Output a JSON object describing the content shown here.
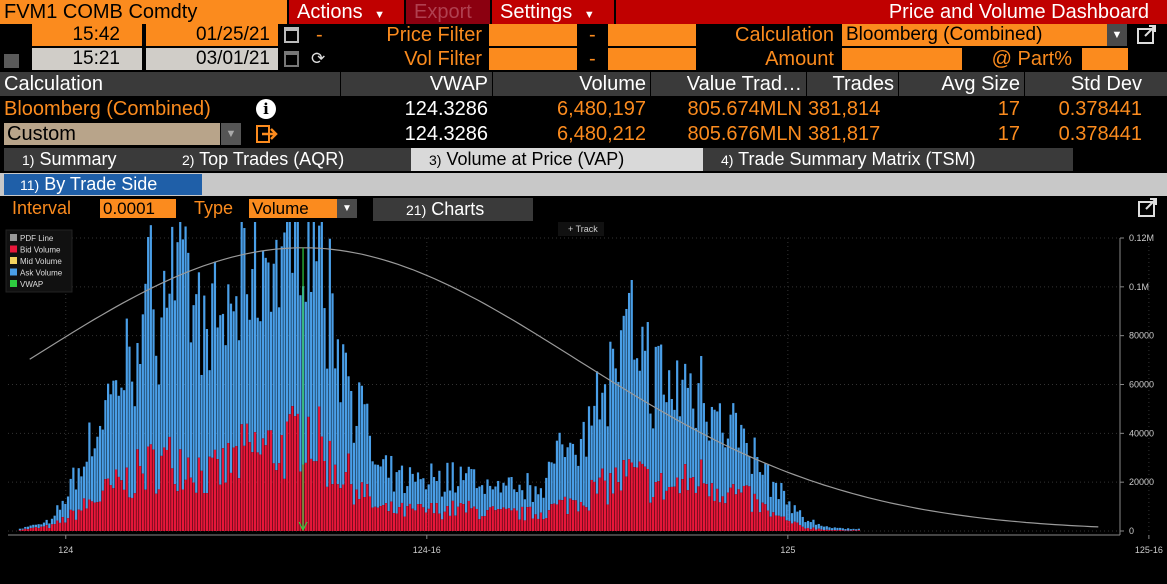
{
  "header": {
    "ticker": "FVM1 COMB Comdty",
    "actions_label": "Actions",
    "export_label": "Export",
    "settings_label": "Settings",
    "dashboard_title": "Price and Volume Dashboard"
  },
  "filters": {
    "start_time": "15:42",
    "start_date": "01/25/21",
    "end_time": "15:21",
    "end_date": "03/01/21",
    "range_dash": "-",
    "price_filter_label": "Price Filter",
    "price_filter_from": "",
    "price_filter_to": "",
    "vol_filter_label": "Vol Filter",
    "vol_filter_from": "",
    "vol_filter_to": "",
    "calculation_label": "Calculation",
    "calculation_value": "Bloomberg (Combined)",
    "amount_label": "Amount",
    "amount_value": "",
    "part_label": "@ Part%",
    "part_value": ""
  },
  "table": {
    "headers": [
      "Calculation",
      "VWAP",
      "Volume",
      "Value Trad…",
      "Trades",
      "Avg Size",
      "Std Dev"
    ],
    "rows": [
      {
        "calc": "Bloomberg (Combined)",
        "vwap": "124.3286",
        "volume": "6,480,197",
        "value": "805.674MLN",
        "trades": "381,814",
        "avg": "17",
        "std": "0.378441"
      },
      {
        "calc": "Custom",
        "vwap": "124.3286",
        "volume": "6,480,212",
        "value": "805.676MLN",
        "trades": "381,817",
        "avg": "17",
        "std": "0.378441"
      }
    ]
  },
  "tabs": [
    {
      "num": "1)",
      "label": "Summary"
    },
    {
      "num": "2)",
      "label": "Top Trades (AQR)"
    },
    {
      "num": "3)",
      "label": "Volume at Price (VAP)"
    },
    {
      "num": "4)",
      "label": "Trade Summary Matrix (TSM)"
    }
  ],
  "subtab": {
    "num": "11)",
    "label": "By Trade Side"
  },
  "controls": {
    "interval_label": "Interval",
    "interval_value": "0.0001",
    "type_label": "Type",
    "type_value": "Volume",
    "charts_num": "21)",
    "charts_label": "Charts",
    "track_label": "Track"
  },
  "colors": {
    "orange": "#fb8b1e",
    "bid": "#e8173a",
    "ask": "#4a9fe8",
    "mid": "#f4d35e",
    "vwap": "#2ecc40",
    "pdf": "#9a9a9a"
  },
  "chart_data": {
    "type": "bar",
    "stacked": true,
    "legend": [
      "PDF Line",
      "Bid Volume",
      "Mid Volume",
      "Ask Volume",
      "VWAP"
    ],
    "legend_position": "top-left",
    "x_ticks": [
      "124",
      "124-16",
      "125",
      "125-16"
    ],
    "x_range": [
      123.92,
      125.46
    ],
    "y_ticks": [
      "0",
      "20000",
      "40000",
      "60000",
      "80000",
      "0.1M",
      "0.12M"
    ],
    "ylim": [
      0,
      120000
    ],
    "vwap": 124.3286,
    "series": [
      {
        "name": "Bid Volume",
        "anchors": [
          [
            123.92,
            0
          ],
          [
            123.98,
            2000
          ],
          [
            124.01,
            7000
          ],
          [
            124.05,
            15000
          ],
          [
            124.08,
            20000
          ],
          [
            124.12,
            27000
          ],
          [
            124.16,
            30000
          ],
          [
            124.2,
            22000
          ],
          [
            124.25,
            32000
          ],
          [
            124.31,
            35000
          ],
          [
            124.33,
            45000
          ],
          [
            124.36,
            30000
          ],
          [
            124.39,
            22000
          ],
          [
            124.43,
            9000
          ],
          [
            124.47,
            8000
          ],
          [
            124.55,
            9000
          ],
          [
            124.6,
            7000
          ],
          [
            124.65,
            7000
          ],
          [
            124.7,
            12000
          ],
          [
            124.78,
            23000
          ],
          [
            124.83,
            17000
          ],
          [
            124.88,
            22000
          ],
          [
            124.92,
            16000
          ],
          [
            124.95,
            12000
          ],
          [
            124.98,
            6000
          ],
          [
            125.02,
            1500
          ],
          [
            125.06,
            300
          ],
          [
            125.46,
            0
          ]
        ]
      },
      {
        "name": "Ask Volume",
        "anchors": [
          [
            123.92,
            0
          ],
          [
            123.98,
            2000
          ],
          [
            124.01,
            14000
          ],
          [
            124.05,
            32000
          ],
          [
            124.08,
            45000
          ],
          [
            124.12,
            70000
          ],
          [
            124.16,
            78000
          ],
          [
            124.2,
            55000
          ],
          [
            124.25,
            70000
          ],
          [
            124.31,
            85000
          ],
          [
            124.33,
            110000
          ],
          [
            124.36,
            62000
          ],
          [
            124.39,
            48000
          ],
          [
            124.43,
            15000
          ],
          [
            124.47,
            12000
          ],
          [
            124.55,
            14000
          ],
          [
            124.6,
            10000
          ],
          [
            124.65,
            11000
          ],
          [
            124.7,
            25000
          ],
          [
            124.78,
            55000
          ],
          [
            124.83,
            40000
          ],
          [
            124.88,
            38000
          ],
          [
            124.92,
            28000
          ],
          [
            124.95,
            18000
          ],
          [
            124.98,
            12000
          ],
          [
            125.02,
            3500
          ],
          [
            125.06,
            800
          ],
          [
            125.46,
            0
          ]
        ]
      },
      {
        "name": "PDF Line",
        "center": 124.3286,
        "peak": 116000,
        "sigma": 0.378441
      }
    ]
  }
}
